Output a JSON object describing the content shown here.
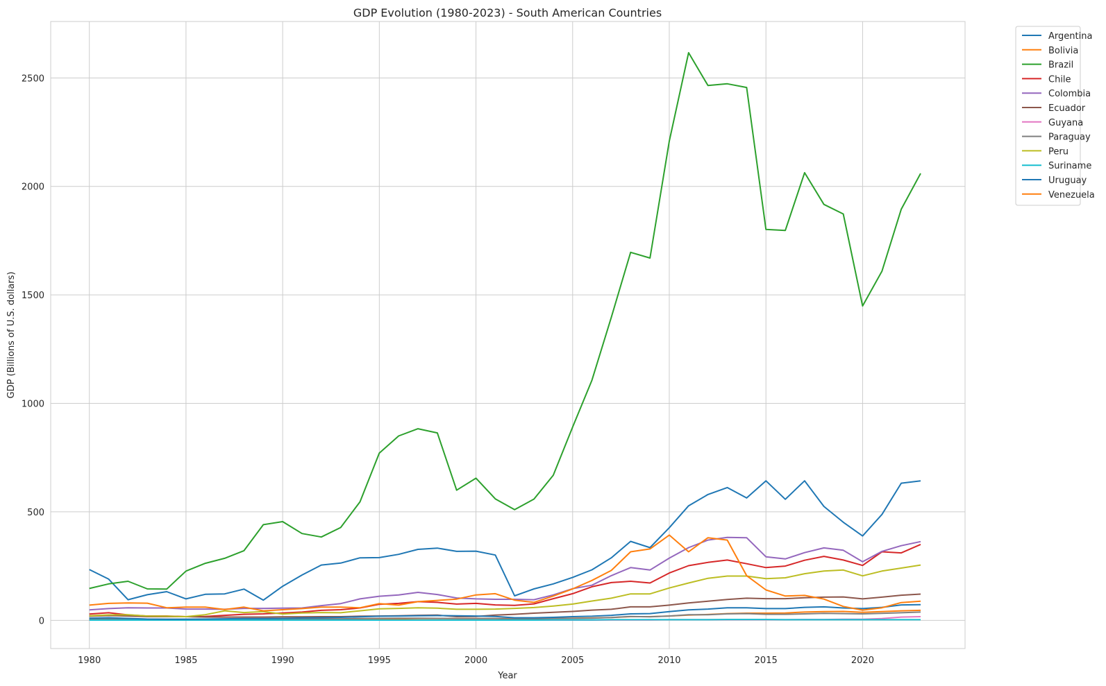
{
  "chart_data": {
    "type": "line",
    "title": "GDP Evolution (1980-2023) - South American Countries",
    "xlabel": "Year",
    "ylabel": "GDP (Billions of U.S. dollars)",
    "xlim": [
      1978,
      2025.3
    ],
    "ylim": [
      -130,
      2760
    ],
    "x_ticks": [
      1980,
      1985,
      1990,
      1995,
      2000,
      2005,
      2010,
      2015,
      2020
    ],
    "y_ticks": [
      0,
      500,
      1000,
      1500,
      2000,
      2500
    ],
    "grid": true,
    "legend_position": "outside-top-right",
    "x": [
      1980,
      1981,
      1982,
      1983,
      1984,
      1985,
      1986,
      1987,
      1988,
      1989,
      1990,
      1991,
      1992,
      1993,
      1994,
      1995,
      1996,
      1997,
      1998,
      1999,
      2000,
      2001,
      2002,
      2003,
      2004,
      2005,
      2006,
      2007,
      2008,
      2009,
      2010,
      2011,
      2012,
      2013,
      2014,
      2015,
      2016,
      2017,
      2018,
      2019,
      2020,
      2021,
      2022,
      2023
    ],
    "series": [
      {
        "name": "Argentina",
        "color": "#1f77b4",
        "values": [
          234,
          190,
          95,
          118,
          132,
          99,
          120,
          122,
          144,
          93,
          157,
          209,
          255,
          264,
          288,
          289,
          304,
          327,
          333,
          318,
          319,
          301,
          113,
          145,
          168,
          198,
          233,
          288,
          364,
          335,
          427,
          528,
          580,
          612,
          564,
          643,
          558,
          643,
          525,
          452,
          389,
          488,
          632,
          643
        ]
      },
      {
        "name": "Bolivia",
        "color": "#ff7f0e",
        "values": [
          4,
          4,
          4,
          4,
          4,
          4,
          4,
          4,
          4,
          4,
          5,
          5,
          6,
          6,
          6,
          7,
          7,
          8,
          8,
          8,
          8,
          8,
          8,
          8,
          9,
          10,
          11,
          13,
          17,
          17,
          20,
          24,
          27,
          31,
          33,
          33,
          34,
          38,
          40,
          41,
          37,
          40,
          44,
          46
        ]
      },
      {
        "name": "Brazil",
        "color": "#2ca02c",
        "values": [
          147,
          168,
          180,
          145,
          144,
          227,
          263,
          286,
          321,
          441,
          455,
          400,
          384,
          428,
          546,
          771,
          850,
          883,
          864,
          600,
          655,
          560,
          510,
          559,
          669,
          891,
          1107,
          1397,
          1696,
          1670,
          2209,
          2616,
          2465,
          2473,
          2456,
          1802,
          1797,
          2063,
          1917,
          1873,
          1449,
          1609,
          1895,
          2060
        ]
      },
      {
        "name": "Chile",
        "color": "#d62728",
        "values": [
          29,
          35,
          25,
          20,
          20,
          17,
          18,
          23,
          28,
          30,
          34,
          38,
          46,
          49,
          57,
          74,
          78,
          86,
          83,
          75,
          78,
          71,
          69,
          76,
          100,
          123,
          155,
          174,
          180,
          172,
          218,
          252,
          267,
          278,
          261,
          243,
          250,
          277,
          295,
          278,
          253,
          316,
          311,
          350
        ]
      },
      {
        "name": "Colombia",
        "color": "#9467bd",
        "values": [
          48,
          54,
          58,
          57,
          57,
          52,
          52,
          51,
          55,
          55,
          56,
          57,
          68,
          77,
          99,
          111,
          117,
          129,
          119,
          103,
          99,
          97,
          97,
          95,
          117,
          146,
          162,
          206,
          243,
          232,
          287,
          335,
          370,
          382,
          381,
          293,
          283,
          312,
          334,
          323,
          270,
          318,
          344,
          363
        ]
      },
      {
        "name": "Ecuador",
        "color": "#8c564b",
        "values": [
          19,
          22,
          20,
          17,
          17,
          17,
          15,
          15,
          15,
          15,
          16,
          16,
          17,
          17,
          19,
          20,
          21,
          23,
          24,
          17,
          18,
          24,
          28,
          33,
          37,
          41,
          47,
          51,
          62,
          62,
          70,
          80,
          88,
          96,
          102,
          100,
          100,
          104,
          107,
          108,
          99,
          107,
          116,
          121
        ]
      },
      {
        "name": "Guyana",
        "color": "#e377c2",
        "values": [
          1,
          1,
          1,
          1,
          1,
          1,
          1,
          1,
          1,
          1,
          1,
          1,
          1,
          1,
          1,
          1,
          1,
          1,
          1,
          1,
          1,
          1,
          1,
          1,
          1,
          1,
          1,
          2,
          2,
          2,
          3,
          3,
          3,
          3,
          3,
          3,
          3,
          4,
          4,
          5,
          5,
          8,
          15,
          17
        ]
      },
      {
        "name": "Paraguay",
        "color": "#7f7f7f",
        "values": [
          6,
          7,
          7,
          6,
          5,
          5,
          5,
          5,
          6,
          5,
          6,
          7,
          7,
          7,
          8,
          9,
          10,
          10,
          9,
          8,
          8,
          8,
          6,
          7,
          8,
          9,
          10,
          13,
          18,
          16,
          20,
          26,
          26,
          30,
          31,
          28,
          28,
          30,
          32,
          31,
          30,
          32,
          35,
          38
        ]
      },
      {
        "name": "Peru",
        "color": "#bcbd22",
        "values": [
          21,
          25,
          26,
          20,
          19,
          17,
          26,
          44,
          36,
          40,
          29,
          34,
          36,
          35,
          44,
          53,
          55,
          58,
          56,
          51,
          51,
          52,
          55,
          59,
          66,
          75,
          89,
          102,
          122,
          122,
          149,
          172,
          194,
          204,
          204,
          192,
          196,
          215,
          227,
          232,
          205,
          227,
          241,
          255
        ]
      },
      {
        "name": "Suriname",
        "color": "#17becf",
        "values": [
          1,
          1,
          1,
          1,
          1,
          1,
          1,
          1,
          1,
          1,
          1,
          1,
          1,
          1,
          1,
          1,
          1,
          1,
          1,
          1,
          1,
          1,
          1,
          1,
          2,
          2,
          2,
          3,
          3,
          3,
          3,
          3,
          3,
          4,
          4,
          4,
          3,
          3,
          3,
          3,
          3,
          3,
          3,
          3
        ]
      },
      {
        "name": "Uruguay",
        "color": "#1f77b4",
        "values": [
          10,
          12,
          9,
          6,
          5,
          5,
          6,
          7,
          8,
          8,
          9,
          11,
          12,
          14,
          16,
          19,
          20,
          21,
          22,
          21,
          20,
          18,
          12,
          12,
          14,
          17,
          19,
          23,
          30,
          31,
          40,
          48,
          52,
          58,
          58,
          54,
          54,
          60,
          62,
          57,
          54,
          60,
          71,
          72
        ]
      },
      {
        "name": "Venezuela",
        "color": "#ff7f0e",
        "values": [
          70,
          78,
          80,
          79,
          58,
          61,
          61,
          50,
          61,
          44,
          49,
          54,
          61,
          61,
          58,
          77,
          70,
          86,
          92,
          98,
          117,
          123,
          93,
          83,
          112,
          145,
          184,
          230,
          316,
          329,
          393,
          316,
          381,
          370,
          206,
          140,
          112,
          115,
          98,
          64,
          47,
          58,
          82,
          88
        ]
      }
    ]
  }
}
